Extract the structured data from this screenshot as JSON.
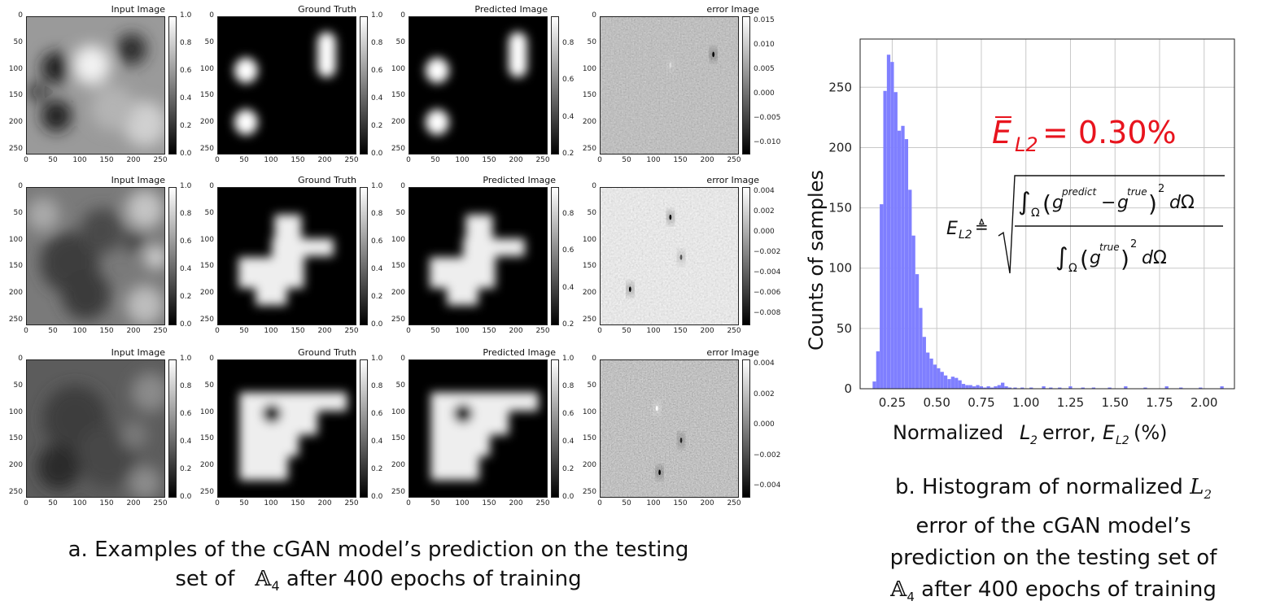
{
  "panel_titles": [
    "Input Image",
    "Ground Truth",
    "Predicted Image",
    "error Image"
  ],
  "axis_ticks": [
    "0",
    "50",
    "100",
    "150",
    "200",
    "250"
  ],
  "colorbar_ticks_01": [
    "1.0",
    "0.8",
    "0.6",
    "0.4",
    "0.2",
    "0.0"
  ],
  "colorbar_ticks_pred_row1": [
    "0.8",
    "0.6",
    "0.4",
    "0.2"
  ],
  "colorbar_ticks_pred_row2": [
    "0.8",
    "0.6",
    "0.4",
    "0.2"
  ],
  "error_ticks": [
    [
      "0.015",
      "0.010",
      "0.005",
      "0.000",
      "−0.005",
      "−0.010"
    ],
    [
      "0.004",
      "0.002",
      "0.000",
      "−0.002",
      "−0.004",
      "−0.006",
      "−0.008"
    ],
    [
      "0.004",
      "0.002",
      "0.000",
      "−0.002",
      "−0.004"
    ]
  ],
  "caption_a_line1": "a. Examples of the cGAN model’s prediction on the testing",
  "caption_a_line2_pre": "set of",
  "caption_a_line2_post": "after 400 epochs of training",
  "set_symbol": "𝔸",
  "set_sub": "4",
  "caption_b_line1_pre": "b. Histogram of normalized",
  "caption_b_line2": "error of the cGAN model’s",
  "caption_b_line3": "prediction on the testing set of",
  "caption_b_line4_post": "after 400 epochs of training",
  "L_symbol": "L",
  "L_sub": "2",
  "chart_data": {
    "type": "bar",
    "xlabel": "Normalized L2 error, EL2(%)",
    "ylabel": "Counts of samples",
    "xlim": [
      0.07,
      2.17
    ],
    "ylim": [
      0,
      290
    ],
    "xticks": [
      "0.25",
      "0.50",
      "0.75",
      "1.00",
      "1.25",
      "1.50",
      "1.75",
      "2.00"
    ],
    "yticks": [
      "0",
      "50",
      "100",
      "150",
      "200",
      "250"
    ],
    "grid": true,
    "bin_width": 0.0195,
    "bin_starts": [
      0.14,
      0.16,
      0.18,
      0.2,
      0.22,
      0.24,
      0.26,
      0.28,
      0.3,
      0.32,
      0.34,
      0.36,
      0.38,
      0.4,
      0.42,
      0.44,
      0.46,
      0.48,
      0.5,
      0.52,
      0.54,
      0.56,
      0.58,
      0.6,
      0.62,
      0.64,
      0.66,
      0.68,
      0.7,
      0.72,
      0.74,
      0.76,
      0.78,
      0.8,
      0.82,
      0.84,
      0.86,
      0.88,
      0.9,
      0.93,
      0.97,
      1.02,
      1.09,
      1.13,
      1.18,
      1.24,
      1.31,
      1.37,
      1.46,
      1.55,
      1.66,
      1.78,
      1.86,
      1.97,
      2.09
    ],
    "counts": [
      6,
      31,
      153,
      247,
      277,
      271,
      246,
      214,
      218,
      207,
      165,
      127,
      95,
      67,
      43,
      30,
      25,
      20,
      17,
      14,
      11,
      8,
      10,
      9,
      7,
      4,
      3,
      3,
      2,
      3,
      2,
      1,
      2,
      1,
      2,
      3,
      5,
      2,
      1,
      1,
      1,
      1,
      2,
      1,
      1,
      2,
      1,
      1,
      1,
      2,
      1,
      2,
      1,
      1,
      2
    ],
    "color": "#7f7fff",
    "annotation": "ĒL2 = 0.30%",
    "annotation_color": "#e8141e",
    "formula_lhs": "EL2",
    "formula_num": "∫Ω(g^predict − g^true)^2 dΩ",
    "formula_den": "∫Ω(g^true)^2 dΩ",
    "sup_predict": "predict",
    "sup_true": "true"
  },
  "colors": {
    "accent": "#7f7fff",
    "annotation": "#e8141e",
    "grid": "#c8c8c8"
  }
}
